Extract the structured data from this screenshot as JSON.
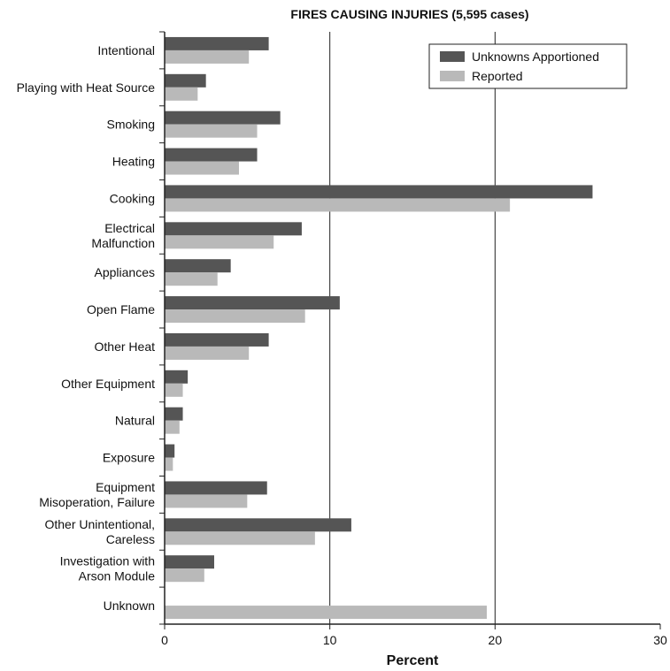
{
  "chart_data": {
    "type": "bar",
    "orientation": "horizontal",
    "title": "FIRES CAUSING INJURIES (5,595 cases)",
    "xlabel": "Percent",
    "ylabel": "",
    "xlim": [
      0,
      30
    ],
    "xticks": [
      "0",
      "10",
      "20",
      "30"
    ],
    "grid": "vertical lines at 10 and 20",
    "legend_position": "top-right",
    "categories": [
      [
        "Intentional"
      ],
      [
        "Playing with Heat Source"
      ],
      [
        "Smoking"
      ],
      [
        "Heating"
      ],
      [
        "Cooking"
      ],
      [
        "Electrical",
        "Malfunction"
      ],
      [
        "Appliances"
      ],
      [
        "Open Flame"
      ],
      [
        "Other Heat"
      ],
      [
        "Other Equipment"
      ],
      [
        "Natural"
      ],
      [
        "Exposure"
      ],
      [
        "Equipment",
        "Misoperation, Failure"
      ],
      [
        "Other Unintentional,",
        "Careless"
      ],
      [
        "Investigation with",
        "Arson Module"
      ],
      [
        "Unknown"
      ]
    ],
    "series": [
      {
        "name": "Unknowns Apportioned",
        "color": "#555555",
        "values": [
          6.3,
          2.5,
          7.0,
          5.6,
          25.9,
          8.3,
          4.0,
          10.6,
          6.3,
          1.4,
          1.1,
          0.6,
          6.2,
          11.3,
          3.0,
          null
        ]
      },
      {
        "name": "Reported",
        "color": "#b9b9b9",
        "values": [
          5.1,
          2.0,
          5.6,
          4.5,
          20.9,
          6.6,
          3.2,
          8.5,
          5.1,
          1.1,
          0.9,
          0.5,
          5.0,
          9.1,
          2.4,
          19.5
        ]
      }
    ]
  }
}
